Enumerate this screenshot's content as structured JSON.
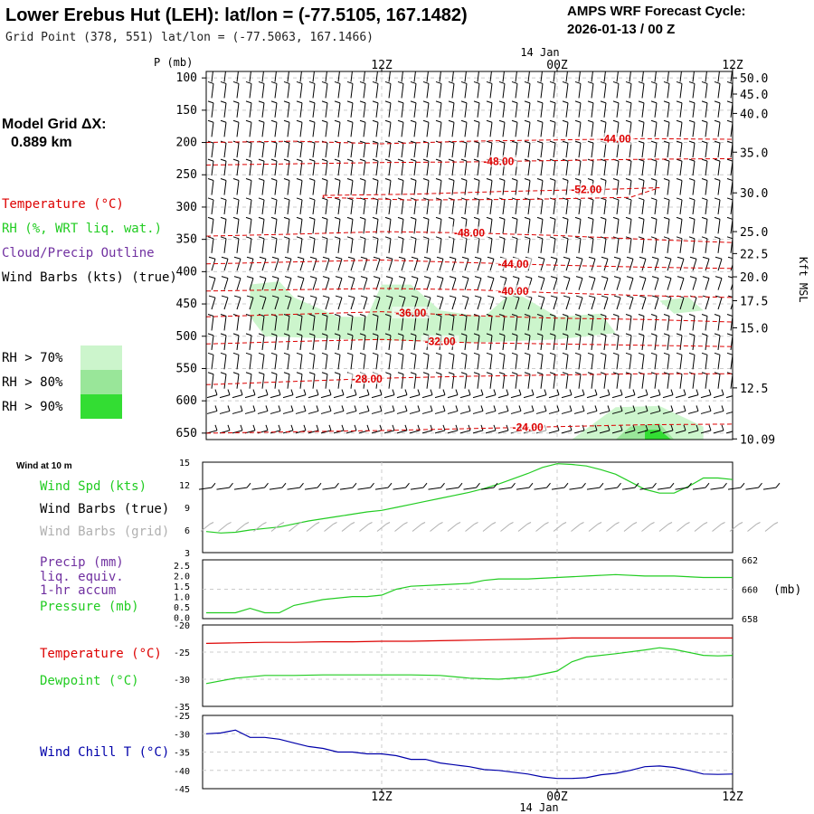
{
  "header": {
    "title": "Lower Erebus Hut (LEH):  lat/lon = (-77.5105, 167.1482)",
    "subtitle": "Grid Point (378, 551) lat/lon = (-77.5063, 167.1466)",
    "cycle_label": "AMPS WRF Forecast Cycle:",
    "cycle_value": "2026-01-13 / 00  Z"
  },
  "model_grid": {
    "label": "Model Grid ΔX:",
    "value": "0.889 km"
  },
  "time_axis": {
    "top_date": "14 Jan",
    "bottom_date": "14 Jan",
    "ticks": [
      {
        "t": 12,
        "label": "12Z"
      },
      {
        "t": 24,
        "label": "00Z"
      },
      {
        "t": 36,
        "label": "12Z"
      }
    ]
  },
  "legend_upper": {
    "temperature": "Temperature (°C)",
    "rh": "RH (%, WRT liq. wat.)",
    "cloud": "Cloud/Precip Outline",
    "wind": "Wind Barbs (kts) (true)",
    "rh_levels": [
      {
        "label": "RH > 70%",
        "color": "#ccf5cc"
      },
      {
        "label": "RH > 80%",
        "color": "#99e699"
      },
      {
        "label": "RH > 90%",
        "color": "#33dd33"
      }
    ]
  },
  "legend_wind10": {
    "title": "Wind at 10 m",
    "speed": "Wind Spd (kts)",
    "barbs_true": "Wind Barbs (true)",
    "barbs_grid": "Wind Barbs (grid)"
  },
  "legend_precip": {
    "precip": "Precip (mm)",
    "liq": "liq. equiv.",
    "accum": "1-hr accum",
    "pressure": "Pressure (mb)",
    "unit_right": "(mb)"
  },
  "legend_temp": {
    "temperature": "Temperature (°C)",
    "dewpoint": "Dewpoint (°C)"
  },
  "legend_chill": {
    "chill": "Wind Chill T (°C)"
  },
  "colors": {
    "temperature": "#dd0000",
    "dewpoint": "#22cc22",
    "windchill": "#0000aa",
    "precip_label": "#7030a0",
    "grid_barbs": "#b0b0b0"
  },
  "chart_data": [
    {
      "type": "contour",
      "name": "upper-air cross-section",
      "ylabel": "P (mb)",
      "y2label": "Kft MSL",
      "ylim": [
        660,
        90
      ],
      "xlim": [
        0,
        36
      ],
      "pressure_ticks": [
        100,
        150,
        200,
        250,
        300,
        350,
        400,
        450,
        500,
        550,
        600,
        650
      ],
      "height_ticks": [
        {
          "p": 100,
          "label": "50.0"
        },
        {
          "p": 125,
          "label": "45.0"
        },
        {
          "p": 155,
          "label": "40.0"
        },
        {
          "p": 215,
          "label": "35.0"
        },
        {
          "p": 278,
          "label": "30.0"
        },
        {
          "p": 338,
          "label": "25.0"
        },
        {
          "p": 372,
          "label": "22.5"
        },
        {
          "p": 408,
          "label": "20.0"
        },
        {
          "p": 445,
          "label": "17.5"
        },
        {
          "p": 487,
          "label": "15.0"
        },
        {
          "p": 580,
          "label": "12.5"
        },
        {
          "p": 659,
          "label": "10.09"
        }
      ],
      "temperature_contours": [
        {
          "label": "-44.00",
          "label_t": 28,
          "points": [
            [
              0,
              200
            ],
            [
              6,
              198
            ],
            [
              12,
              202
            ],
            [
              18,
              198
            ],
            [
              24,
              196
            ],
            [
              30,
              194
            ],
            [
              36,
              195
            ]
          ]
        },
        {
          "label": "-48.00",
          "label_t": 20,
          "points": [
            [
              0,
              235
            ],
            [
              6,
              233
            ],
            [
              12,
              231
            ],
            [
              18,
              230
            ],
            [
              24,
              228
            ],
            [
              30,
              226
            ],
            [
              36,
              225
            ]
          ]
        },
        {
          "label": "-52.00",
          "label_t": 26,
          "points": [
            [
              8,
              282
            ],
            [
              14,
              280
            ],
            [
              20,
              276
            ],
            [
              24,
              274
            ],
            [
              28,
              272
            ],
            [
              31,
              270
            ],
            [
              29,
              285
            ],
            [
              22,
              288
            ],
            [
              14,
              289
            ],
            [
              8,
              285
            ]
          ]
        },
        {
          "label": "-48.00",
          "label_t": 18,
          "points": [
            [
              0,
              345
            ],
            [
              6,
              342
            ],
            [
              12,
              338
            ],
            [
              18,
              340
            ],
            [
              24,
              344
            ],
            [
              30,
              350
            ],
            [
              36,
              355
            ]
          ]
        },
        {
          "label": "-44.00",
          "label_t": 21,
          "points": [
            [
              0,
              388
            ],
            [
              6,
              385
            ],
            [
              12,
              382
            ],
            [
              18,
              386
            ],
            [
              24,
              390
            ],
            [
              30,
              393
            ],
            [
              36,
              395
            ]
          ]
        },
        {
          "label": "-40.00",
          "label_t": 21,
          "points": [
            [
              0,
              430
            ],
            [
              6,
              428
            ],
            [
              12,
              426
            ],
            [
              18,
              428
            ],
            [
              24,
              433
            ],
            [
              30,
              437
            ],
            [
              36,
              440
            ]
          ]
        },
        {
          "label": "-36.00",
          "label_t": 14,
          "points": [
            [
              0,
              470
            ],
            [
              6,
              466
            ],
            [
              12,
              462
            ],
            [
              18,
              468
            ],
            [
              24,
              472
            ],
            [
              30,
              474
            ],
            [
              36,
              478
            ]
          ]
        },
        {
          "label": "-32.00",
          "label_t": 16,
          "points": [
            [
              0,
              512
            ],
            [
              6,
              508
            ],
            [
              12,
              505
            ],
            [
              18,
              510
            ],
            [
              24,
              512
            ],
            [
              30,
              514
            ],
            [
              36,
              516
            ]
          ]
        },
        {
          "label": "-28.00",
          "label_t": 11,
          "points": [
            [
              0,
              575
            ],
            [
              6,
              570
            ],
            [
              12,
              565
            ],
            [
              18,
              562
            ],
            [
              24,
              560
            ],
            [
              30,
              558
            ],
            [
              36,
              558
            ]
          ]
        },
        {
          "label": "-24.00",
          "label_t": 22,
          "points": [
            [
              0,
              650
            ],
            [
              6,
              648
            ],
            [
              12,
              646
            ],
            [
              18,
              643
            ],
            [
              24,
              640
            ],
            [
              30,
              637
            ],
            [
              36,
              636
            ]
          ]
        }
      ],
      "rh_regions": [
        {
          "level": "70",
          "points": [
            [
              3,
              420
            ],
            [
              5,
              415
            ],
            [
              6,
              440
            ],
            [
              9,
              470
            ],
            [
              11,
              470
            ],
            [
              12,
              420
            ],
            [
              14,
              420
            ],
            [
              16,
              460
            ],
            [
              19,
              470
            ],
            [
              21,
              430
            ],
            [
              24,
              470
            ],
            [
              27,
              465
            ],
            [
              28,
              495
            ],
            [
              24,
              505
            ],
            [
              18,
              510
            ],
            [
              10,
              505
            ],
            [
              4,
              500
            ],
            [
              3,
              470
            ]
          ]
        },
        {
          "level": "70",
          "points": [
            [
              31,
              445
            ],
            [
              33,
              440
            ],
            [
              34,
              460
            ],
            [
              32,
              465
            ]
          ]
        },
        {
          "level": "70",
          "points": [
            [
              25,
              660
            ],
            [
              28,
              610
            ],
            [
              31,
              608
            ],
            [
              34,
              640
            ],
            [
              34,
              660
            ]
          ]
        },
        {
          "level": "80",
          "points": [
            [
              28,
              660
            ],
            [
              29,
              640
            ],
            [
              31,
              635
            ],
            [
              32,
              660
            ]
          ]
        },
        {
          "level": "90",
          "points": [
            [
              30,
              660
            ],
            [
              30,
              645
            ],
            [
              31,
              645
            ],
            [
              31.8,
              660
            ]
          ]
        }
      ]
    },
    {
      "type": "line",
      "name": "10 m wind speed",
      "ylabel": "Wind Spd (kts)",
      "ylim": [
        3,
        15
      ],
      "yticks": [
        3,
        6,
        9,
        12,
        15
      ],
      "x": [
        0,
        1,
        2,
        3,
        4,
        5,
        6,
        7,
        8,
        9,
        10,
        11,
        12,
        13,
        14,
        15,
        16,
        17,
        18,
        19,
        20,
        21,
        22,
        23,
        24,
        25,
        26,
        27,
        28,
        29,
        30,
        31,
        32,
        33,
        34,
        35,
        36
      ],
      "series": [
        {
          "name": "Wind Spd",
          "values": [
            5.8,
            5.6,
            5.7,
            6.0,
            6.2,
            6.4,
            6.8,
            7.2,
            7.5,
            7.8,
            8.1,
            8.4,
            8.6,
            9.0,
            9.4,
            9.8,
            10.2,
            10.6,
            11.0,
            11.5,
            12.1,
            12.8,
            13.5,
            14.3,
            14.8,
            14.7,
            14.5,
            14.0,
            13.4,
            12.4,
            11.4,
            10.9,
            10.9,
            11.8,
            12.9,
            12.9,
            12.7
          ]
        }
      ]
    },
    {
      "type": "line",
      "name": "surface pressure",
      "ylabel": "Pressure (mb)",
      "ylim": [
        658,
        662
      ],
      "yticks": [
        658,
        660,
        662
      ],
      "x": [
        0,
        2,
        3,
        4,
        5,
        6,
        8,
        10,
        11,
        12,
        13,
        14,
        16,
        18,
        19,
        20,
        22,
        24,
        26,
        28,
        30,
        32,
        34,
        36
      ],
      "series": [
        {
          "name": "Pressure",
          "values": [
            658.4,
            658.4,
            658.7,
            658.4,
            658.4,
            658.9,
            659.3,
            659.5,
            659.5,
            659.6,
            660.0,
            660.2,
            660.3,
            660.4,
            660.6,
            660.7,
            660.7,
            660.8,
            660.9,
            661.0,
            660.9,
            660.9,
            660.8,
            660.8
          ]
        }
      ]
    },
    {
      "type": "line",
      "name": "temperature and dewpoint",
      "ylabel": "Temperature (°C)",
      "ylim": [
        -35,
        -20
      ],
      "yticks": [
        -35,
        -30,
        -25,
        -20
      ],
      "x": [
        0,
        2,
        4,
        6,
        8,
        10,
        12,
        14,
        16,
        18,
        20,
        22,
        24,
        25,
        26,
        28,
        30,
        31,
        32,
        34,
        35,
        36
      ],
      "series": [
        {
          "name": "Temperature",
          "values": [
            -23.4,
            -23.3,
            -23.2,
            -23.2,
            -23.1,
            -23.1,
            -23.0,
            -23.0,
            -22.9,
            -22.8,
            -22.7,
            -22.6,
            -22.5,
            -22.4,
            -22.4,
            -22.4,
            -22.4,
            -22.4,
            -22.4,
            -22.4,
            -22.4,
            -22.4
          ]
        },
        {
          "name": "Dewpoint",
          "values": [
            -30.8,
            -29.8,
            -29.3,
            -29.3,
            -29.2,
            -29.2,
            -29.2,
            -29.2,
            -29.3,
            -29.8,
            -30.0,
            -29.6,
            -28.5,
            -26.8,
            -25.9,
            -25.3,
            -24.6,
            -24.2,
            -24.5,
            -25.6,
            -25.7,
            -25.6
          ]
        }
      ]
    },
    {
      "type": "line",
      "name": "wind chill",
      "ylabel": "Wind Chill T (°C)",
      "ylim": [
        -45,
        -25
      ],
      "yticks": [
        -45,
        -40,
        -35,
        -30,
        -25
      ],
      "x": [
        0,
        1,
        2,
        3,
        4,
        5,
        6,
        7,
        8,
        9,
        10,
        11,
        12,
        13,
        14,
        15,
        16,
        17,
        18,
        19,
        20,
        21,
        22,
        23,
        24,
        25,
        26,
        27,
        28,
        29,
        30,
        31,
        32,
        33,
        34,
        35,
        36
      ],
      "series": [
        {
          "name": "Wind Chill",
          "values": [
            -30.0,
            -29.8,
            -29.0,
            -31.0,
            -31.0,
            -31.5,
            -32.5,
            -33.5,
            -34.0,
            -35.0,
            -35.0,
            -35.5,
            -35.5,
            -36.0,
            -37.0,
            -37.0,
            -38.0,
            -38.5,
            -39.0,
            -39.8,
            -40.0,
            -40.5,
            -41.0,
            -41.8,
            -42.2,
            -42.2,
            -42.0,
            -41.2,
            -40.8,
            -40.0,
            -39.0,
            -38.8,
            -39.2,
            -40.0,
            -41.0,
            -41.1,
            -41.0
          ]
        }
      ]
    }
  ]
}
